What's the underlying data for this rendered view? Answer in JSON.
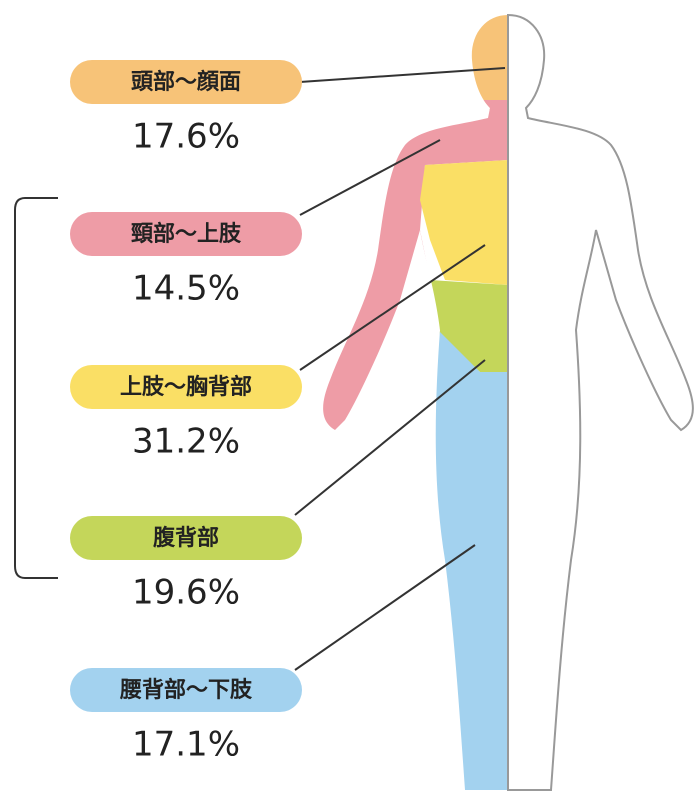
{
  "regions": [
    {
      "label": "頭部～顔面",
      "value": "17.6%"
    },
    {
      "label": "頸部～上肢",
      "value": "14.5%"
    },
    {
      "label": "上肢～胸背部",
      "value": "31.2%"
    },
    {
      "label": "腹背部",
      "value": "19.6%"
    },
    {
      "label": "腰背部～下肢",
      "value": "17.1%"
    }
  ]
}
